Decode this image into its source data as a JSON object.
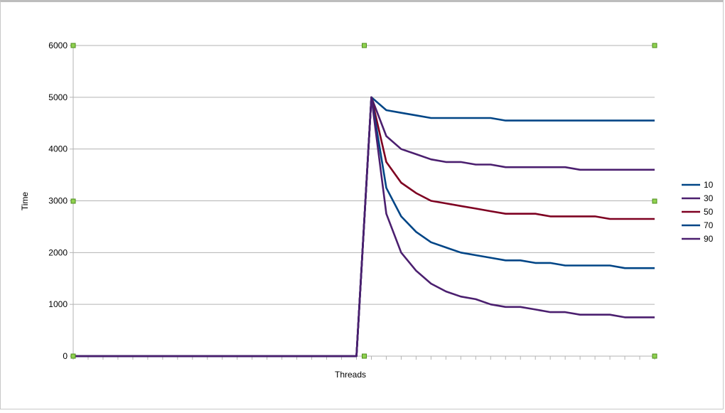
{
  "chart_data": {
    "type": "line",
    "title": "",
    "xlabel": "Threads",
    "ylabel": "Time",
    "ylim": [
      0,
      6000
    ],
    "yticks": [
      0,
      1000,
      2000,
      3000,
      4000,
      5000,
      6000
    ],
    "grid": true,
    "legend_position": "right",
    "x": [
      1,
      2,
      3,
      4,
      5,
      6,
      7,
      8,
      9,
      10,
      11,
      12,
      13,
      14,
      15,
      16,
      17,
      18,
      19,
      20,
      21,
      22,
      23,
      24,
      25,
      26,
      27,
      28,
      29,
      30,
      31,
      32,
      33,
      34,
      35,
      36,
      37,
      38,
      39,
      40
    ],
    "series": [
      {
        "name": "10",
        "color": "#004586",
        "values": [
          0,
          0,
          0,
          0,
          0,
          0,
          0,
          0,
          0,
          0,
          0,
          0,
          0,
          0,
          0,
          0,
          0,
          0,
          0,
          0,
          5000,
          4750,
          4700,
          4650,
          4600,
          4600,
          4600,
          4600,
          4600,
          4550,
          4550,
          4550,
          4550,
          4550,
          4550,
          4550,
          4550,
          4550,
          4550,
          4550
        ]
      },
      {
        "name": "30",
        "color": "#4b1f6f",
        "values": [
          0,
          0,
          0,
          0,
          0,
          0,
          0,
          0,
          0,
          0,
          0,
          0,
          0,
          0,
          0,
          0,
          0,
          0,
          0,
          0,
          5000,
          4250,
          4000,
          3900,
          3800,
          3750,
          3750,
          3700,
          3700,
          3650,
          3650,
          3650,
          3650,
          3650,
          3600,
          3600,
          3600,
          3600,
          3600,
          3600
        ]
      },
      {
        "name": "50",
        "color": "#7e0021",
        "values": [
          0,
          0,
          0,
          0,
          0,
          0,
          0,
          0,
          0,
          0,
          0,
          0,
          0,
          0,
          0,
          0,
          0,
          0,
          0,
          0,
          5000,
          3750,
          3350,
          3150,
          3000,
          2950,
          2900,
          2850,
          2800,
          2750,
          2750,
          2750,
          2700,
          2700,
          2700,
          2700,
          2650,
          2650,
          2650,
          2650
        ]
      },
      {
        "name": "70",
        "color": "#004586",
        "values": [
          0,
          0,
          0,
          0,
          0,
          0,
          0,
          0,
          0,
          0,
          0,
          0,
          0,
          0,
          0,
          0,
          0,
          0,
          0,
          0,
          5000,
          3250,
          2700,
          2400,
          2200,
          2100,
          2000,
          1950,
          1900,
          1850,
          1850,
          1800,
          1800,
          1750,
          1750,
          1750,
          1750,
          1700,
          1700,
          1700
        ]
      },
      {
        "name": "90",
        "color": "#4b1f6f",
        "values": [
          0,
          0,
          0,
          0,
          0,
          0,
          0,
          0,
          0,
          0,
          0,
          0,
          0,
          0,
          0,
          0,
          0,
          0,
          0,
          0,
          5000,
          2750,
          2000,
          1650,
          1400,
          1250,
          1150,
          1100,
          1000,
          950,
          950,
          900,
          850,
          850,
          800,
          800,
          800,
          750,
          750,
          750
        ]
      }
    ]
  }
}
